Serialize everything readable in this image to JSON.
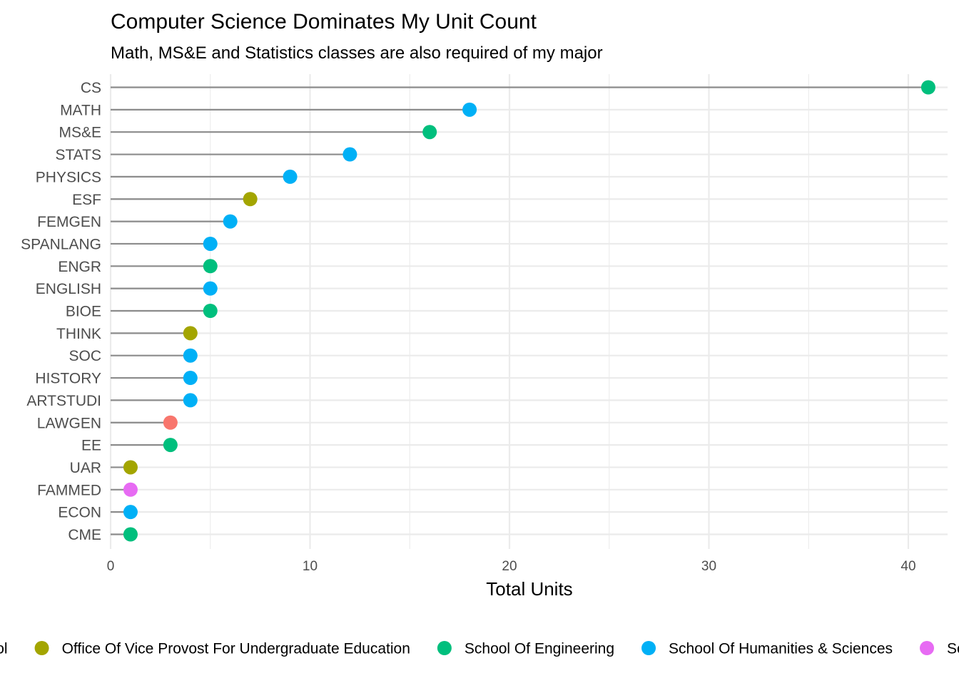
{
  "chart_data": {
    "type": "lollipop",
    "title": "Computer Science Dominates My Unit Count",
    "subtitle": "Math, MS&E and Statistics classes are also required of my major",
    "xlabel": "Total Units",
    "ylabel": "",
    "xlim": [
      0,
      42
    ],
    "x_ticks": [
      0,
      10,
      20,
      30,
      40
    ],
    "grid": true,
    "legend_position": "bottom",
    "categories": [
      "CS",
      "MATH",
      "MS&E",
      "STATS",
      "PHYSICS",
      "ESF",
      "FEMGEN",
      "SPANLANG",
      "ENGR",
      "ENGLISH",
      "BIOE",
      "THINK",
      "SOC",
      "HISTORY",
      "ARTSTUDI",
      "LAWGEN",
      "EE",
      "UAR",
      "FAMMED",
      "ECON",
      "CME"
    ],
    "values": [
      41,
      18,
      16,
      12,
      9,
      7,
      6,
      5,
      5,
      5,
      5,
      4,
      4,
      4,
      4,
      3,
      3,
      1,
      1,
      1,
      1
    ],
    "groups": [
      "School Of Engineering",
      "School Of Humanities & Sciences",
      "School Of Engineering",
      "School Of Humanities & Sciences",
      "School Of Humanities & Sciences",
      "Office Of Vice Provost For Undergraduate Education",
      "School Of Humanities & Sciences",
      "School Of Humanities & Sciences",
      "School Of Engineering",
      "School Of Humanities & Sciences",
      "School Of Engineering",
      "Office Of Vice Provost For Undergraduate Education",
      "School Of Humanities & Sciences",
      "School Of Humanities & Sciences",
      "School Of Humanities & Sciences",
      "Law School",
      "School Of Engineering",
      "Office Of Vice Provost For Undergraduate Education",
      "School Of Medicine",
      "School Of Humanities & Sciences",
      "School Of Engineering"
    ],
    "legend": [
      {
        "name": "Law School",
        "color": "#F8766D"
      },
      {
        "name": "Office Of Vice Provost For Undergraduate Education",
        "color": "#A3A500"
      },
      {
        "name": "School Of Engineering",
        "color": "#00BF7D"
      },
      {
        "name": "School Of Humanities & Sciences",
        "color": "#00B0F6"
      },
      {
        "name": "School Of Medicine",
        "color": "#E76BF3"
      }
    ]
  }
}
